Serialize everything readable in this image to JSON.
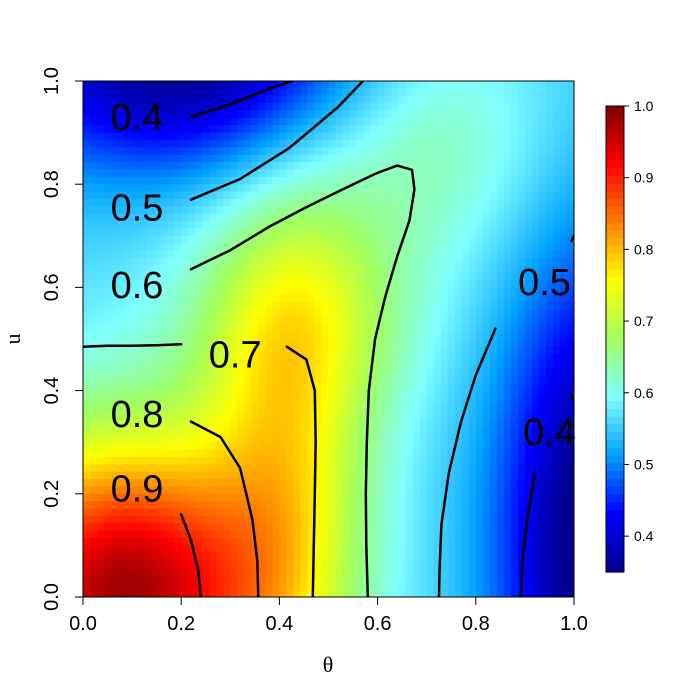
{
  "chart_data": {
    "type": "heatmap",
    "xlabel": "θ",
    "ylabel": "u",
    "xlim": [
      0,
      1
    ],
    "ylim": [
      0,
      1
    ],
    "x_ticks": [
      "0.0",
      "0.2",
      "0.4",
      "0.6",
      "0.8",
      "1.0"
    ],
    "y_ticks": [
      "0.0",
      "0.2",
      "0.4",
      "0.6",
      "0.8",
      "1.0"
    ],
    "colorbar": {
      "range": [
        0.35,
        1.0
      ],
      "ticks": [
        "0.4",
        "0.5",
        "0.6",
        "0.7",
        "0.8",
        "0.9",
        "1.0"
      ],
      "colormap": [
        "#00008f",
        "#0000ff",
        "#00a0ff",
        "#80ffff",
        "#a0ff60",
        "#ffff00",
        "#ff8000",
        "#ff0000",
        "#800000"
      ]
    },
    "contour_labels": [
      {
        "text": "0.4",
        "x": 0.11,
        "y": 0.93
      },
      {
        "text": "0.5",
        "x": 0.11,
        "y": 0.755
      },
      {
        "text": "0.6",
        "x": 0.11,
        "y": 0.605
      },
      {
        "text": "0.7",
        "x": 0.31,
        "y": 0.47
      },
      {
        "text": "0.8",
        "x": 0.11,
        "y": 0.355
      },
      {
        "text": "0.9",
        "x": 0.11,
        "y": 0.21
      },
      {
        "text": "0.5",
        "x": 0.94,
        "y": 0.61
      },
      {
        "text": "0.4",
        "x": 0.95,
        "y": 0.32
      }
    ],
    "contours": [
      {
        "level": "0.9",
        "points": [
          [
            0.2,
            0.16
          ],
          [
            0.22,
            0.11
          ],
          [
            0.235,
            0.05
          ],
          [
            0.24,
            0.0
          ]
        ]
      },
      {
        "level": "0.8",
        "points": [
          [
            0.22,
            0.34
          ],
          [
            0.28,
            0.31
          ],
          [
            0.32,
            0.25
          ],
          [
            0.345,
            0.15
          ],
          [
            0.355,
            0.07
          ],
          [
            0.357,
            0.0
          ]
        ]
      },
      {
        "level": "0.7",
        "points": [
          [
            0.0,
            0.485
          ],
          [
            0.05,
            0.487
          ],
          [
            0.1,
            0.487
          ],
          [
            0.15,
            0.488
          ],
          [
            0.2,
            0.49
          ]
        ]
      },
      {
        "level": "0.7",
        "points": [
          [
            0.415,
            0.485
          ],
          [
            0.455,
            0.46
          ],
          [
            0.472,
            0.4
          ],
          [
            0.474,
            0.3
          ],
          [
            0.472,
            0.2
          ],
          [
            0.47,
            0.1
          ],
          [
            0.468,
            0.0
          ]
        ]
      },
      {
        "level": "0.6",
        "points": [
          [
            0.22,
            0.635
          ],
          [
            0.3,
            0.672
          ],
          [
            0.38,
            0.718
          ],
          [
            0.46,
            0.758
          ],
          [
            0.54,
            0.795
          ],
          [
            0.6,
            0.822
          ],
          [
            0.64,
            0.836
          ],
          [
            0.67,
            0.828
          ],
          [
            0.675,
            0.79
          ],
          [
            0.665,
            0.73
          ],
          [
            0.64,
            0.66
          ],
          [
            0.615,
            0.58
          ],
          [
            0.595,
            0.5
          ],
          [
            0.582,
            0.4
          ],
          [
            0.578,
            0.3
          ],
          [
            0.576,
            0.2
          ],
          [
            0.577,
            0.1
          ],
          [
            0.58,
            0.0
          ]
        ]
      },
      {
        "level": "0.5",
        "points": [
          [
            0.22,
            0.77
          ],
          [
            0.32,
            0.81
          ],
          [
            0.42,
            0.87
          ],
          [
            0.52,
            0.95
          ],
          [
            0.57,
            1.0
          ]
        ]
      },
      {
        "level": "0.5",
        "points": [
          [
            0.84,
            0.52
          ],
          [
            0.8,
            0.43
          ],
          [
            0.77,
            0.34
          ],
          [
            0.745,
            0.24
          ],
          [
            0.73,
            0.14
          ],
          [
            0.726,
            0.05
          ],
          [
            0.725,
            0.0
          ]
        ]
      },
      {
        "level": "0.5",
        "points": [
          [
            0.995,
            0.69
          ],
          [
            1.0,
            0.7
          ]
        ]
      },
      {
        "level": "0.4",
        "points": [
          [
            0.22,
            0.93
          ],
          [
            0.3,
            0.955
          ],
          [
            0.38,
            0.985
          ],
          [
            0.425,
            1.0
          ]
        ]
      },
      {
        "level": "0.4",
        "points": [
          [
            0.92,
            0.24
          ],
          [
            0.905,
            0.15
          ],
          [
            0.895,
            0.07
          ],
          [
            0.892,
            0.0
          ]
        ]
      },
      {
        "level": "0.4",
        "points": [
          [
            0.995,
            0.39
          ],
          [
            1.0,
            0.38
          ]
        ]
      }
    ]
  }
}
